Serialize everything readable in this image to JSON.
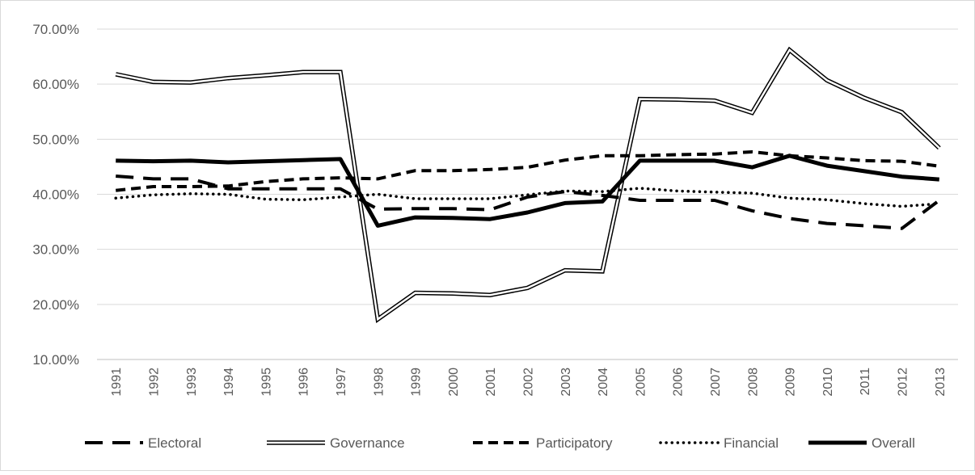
{
  "chart_data": {
    "type": "line",
    "title": "",
    "xlabel": "",
    "ylabel": "",
    "ylim": [
      0.1,
      0.7
    ],
    "y_tick_values": [
      0.1,
      0.2,
      0.3,
      0.4,
      0.5,
      0.6,
      0.7
    ],
    "y_tick_labels": [
      "10.00%",
      "20.00%",
      "30.00%",
      "40.00%",
      "50.00%",
      "60.00%",
      "70.00%"
    ],
    "grid": "horizontal",
    "legend_position": "bottom",
    "x": [
      "1991",
      "1992",
      "1993",
      "1994",
      "1995",
      "1996",
      "1997",
      "1998",
      "1999",
      "2000",
      "2001",
      "2002",
      "2003",
      "2004",
      "2005",
      "2006",
      "2007",
      "2008",
      "2009",
      "2010",
      "2011",
      "2012",
      "2013"
    ],
    "series": [
      {
        "name": "Electoral",
        "style": "long-dash",
        "values": [
          0.433,
          0.428,
          0.428,
          0.41,
          0.41,
          0.41,
          0.41,
          0.373,
          0.374,
          0.374,
          0.372,
          0.395,
          0.405,
          0.398,
          0.389,
          0.389,
          0.389,
          0.37,
          0.356,
          0.347,
          0.343,
          0.338,
          0.389
        ]
      },
      {
        "name": "Governance",
        "style": "double",
        "values": [
          0.618,
          0.604,
          0.603,
          0.611,
          0.616,
          0.622,
          0.622,
          0.173,
          0.221,
          0.22,
          0.217,
          0.23,
          0.262,
          0.26,
          0.573,
          0.572,
          0.57,
          0.548,
          0.662,
          0.607,
          0.575,
          0.549,
          0.484
        ]
      },
      {
        "name": "Participatory",
        "style": "medium-dash",
        "values": [
          0.407,
          0.414,
          0.414,
          0.415,
          0.423,
          0.428,
          0.43,
          0.428,
          0.443,
          0.443,
          0.445,
          0.449,
          0.462,
          0.47,
          0.47,
          0.472,
          0.473,
          0.477,
          0.47,
          0.466,
          0.461,
          0.46,
          0.451
        ]
      },
      {
        "name": "Financial",
        "style": "dotted",
        "values": [
          0.393,
          0.399,
          0.401,
          0.4,
          0.391,
          0.39,
          0.395,
          0.4,
          0.392,
          0.392,
          0.392,
          0.399,
          0.406,
          0.405,
          0.411,
          0.406,
          0.404,
          0.402,
          0.393,
          0.39,
          0.383,
          0.378,
          0.383
        ]
      },
      {
        "name": "Overall",
        "style": "solid",
        "values": [
          0.461,
          0.46,
          0.461,
          0.458,
          0.46,
          0.462,
          0.464,
          0.343,
          0.358,
          0.357,
          0.355,
          0.367,
          0.384,
          0.387,
          0.461,
          0.461,
          0.461,
          0.449,
          0.47,
          0.452,
          0.442,
          0.432,
          0.427
        ]
      }
    ]
  }
}
